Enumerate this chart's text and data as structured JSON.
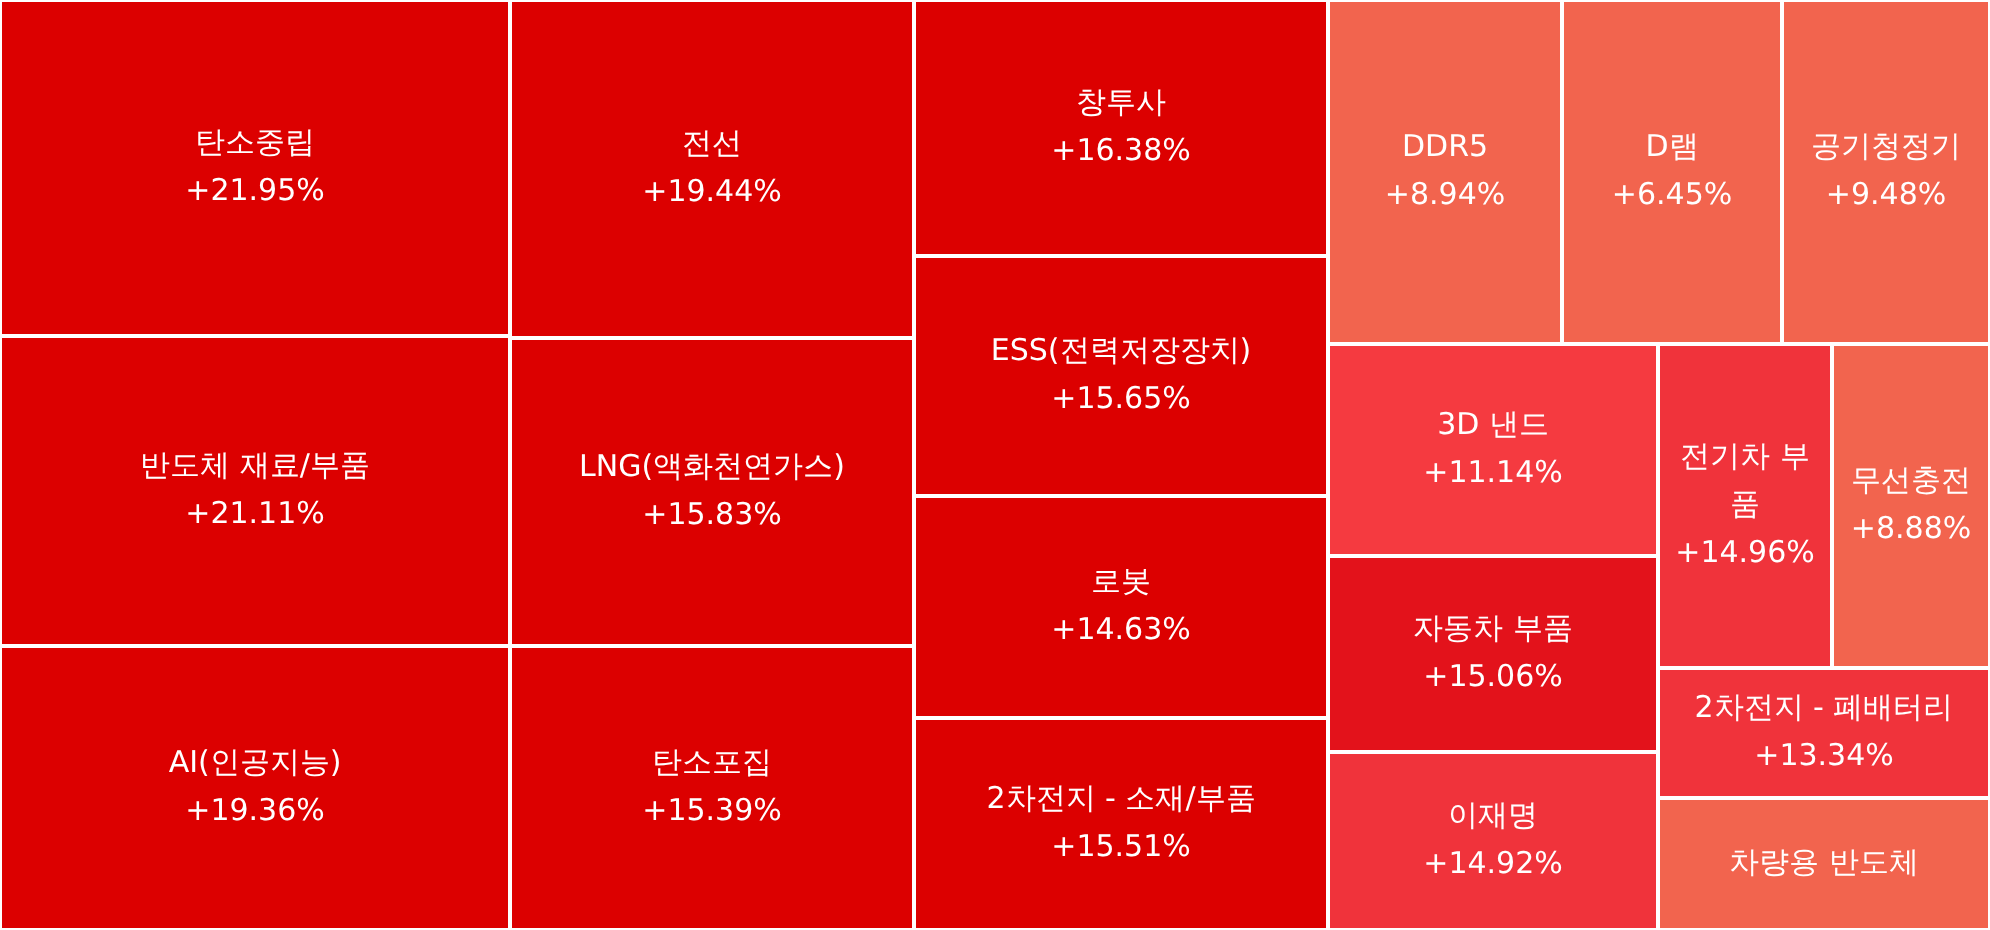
{
  "chart_data": {
    "type": "other",
    "categories": [
      "탄소중립",
      "반도체 재료/부품",
      "AI(인공지능)",
      "전선",
      "LNG(액화천연가스)",
      "탄소포집",
      "창투사",
      "ESS(전력저장장치)",
      "로봇",
      "2차전지 - 소재/부품",
      "DDR5",
      "D램",
      "공기청정기",
      "3D 낸드",
      "자동차 부품",
      "이재명",
      "전기차 부품",
      "무선충전",
      "2차전지 - 폐배터리",
      "차량용 반도체"
    ],
    "values": [
      21.95,
      21.11,
      19.36,
      19.44,
      15.83,
      15.39,
      16.38,
      15.65,
      14.63,
      15.51,
      8.94,
      6.45,
      9.48,
      11.14,
      15.06,
      14.92,
      14.96,
      8.88,
      13.34,
      null
    ],
    "value_labels": [
      "+21.95%",
      "+21.11%",
      "+19.36%",
      "+19.44%",
      "+15.83%",
      "+15.39%",
      "+16.38%",
      "+15.65%",
      "+14.63%",
      "+15.51%",
      "+8.94%",
      "+6.45%",
      "+9.48%",
      "+11.14%",
      "+15.06%",
      "+14.92%",
      "+14.96%",
      "+8.88%",
      "+13.34%",
      null
    ],
    "colors": [
      "#dc0000",
      "#dc0000",
      "#dc0000",
      "#dc0000",
      "#dc0000",
      "#dc0000",
      "#dc0000",
      "#dc0000",
      "#dc0000",
      "#dc0000",
      "#f2644e",
      "#f2644e",
      "#f2644e",
      "#f53a40",
      "#e3121b",
      "#f0333b",
      "#f0333b",
      "#f2644e",
      "#f0333b",
      "#f2644e"
    ]
  }
}
